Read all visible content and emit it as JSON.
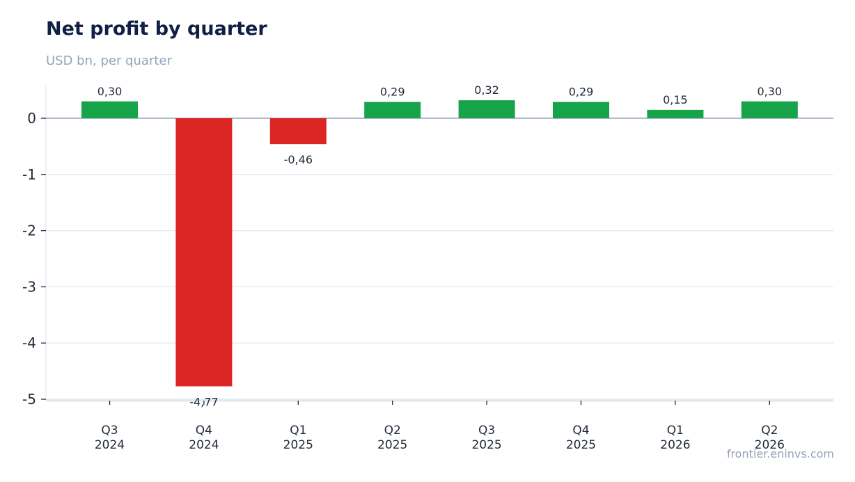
{
  "title": "Net profit by quarter",
  "subtitle": "USD bn, per quarter",
  "source": "frontier.eninvs.com",
  "colors": {
    "positive": "#16a34a",
    "negative": "#dc2626"
  },
  "chart_data": {
    "type": "bar",
    "title": "Net profit by quarter",
    "subtitle": "USD bn, per quarter",
    "categories": [
      [
        "Q3",
        "2024"
      ],
      [
        "Q4",
        "2024"
      ],
      [
        "Q1",
        "2025"
      ],
      [
        "Q2",
        "2025"
      ],
      [
        "Q3",
        "2025"
      ],
      [
        "Q4",
        "2025"
      ],
      [
        "Q1",
        "2026"
      ],
      [
        "Q2",
        "2026"
      ]
    ],
    "values": [
      0.3,
      -4.77,
      -0.46,
      0.29,
      0.32,
      0.29,
      0.15,
      0.3
    ],
    "value_labels": [
      "0,30",
      "-4,77",
      "-0,46",
      "0,29",
      "0,32",
      "0,29",
      "0,15",
      "0,30"
    ],
    "yticks": [
      "0",
      "-1",
      "-2",
      "-3",
      "-4",
      "-5"
    ],
    "ytick_values": [
      0,
      -1,
      -2,
      -3,
      -4,
      -5
    ],
    "ylim": [
      -5,
      0.55
    ],
    "grid": true,
    "legend": "none"
  }
}
